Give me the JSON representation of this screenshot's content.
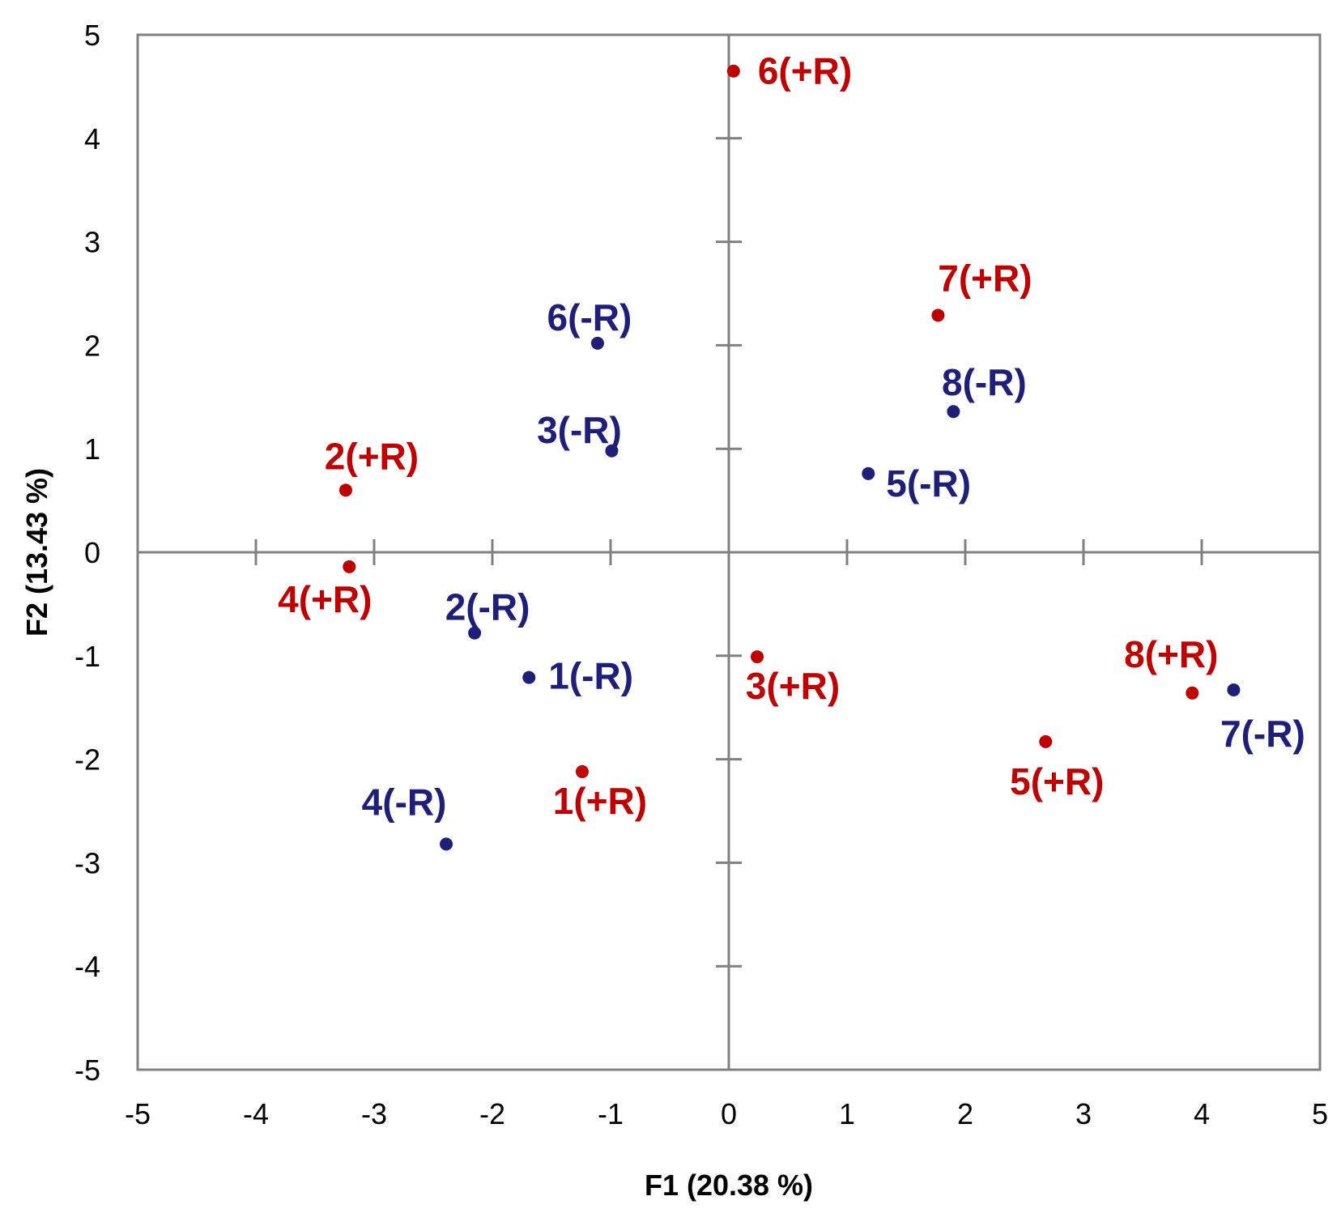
{
  "chart_data": {
    "type": "scatter",
    "title": "",
    "xlabel": "F1 (20.38 %)",
    "ylabel": "F2 (13.43 %)",
    "xlim": [
      -5,
      5
    ],
    "ylim": [
      -5,
      5
    ],
    "x_ticks": [
      "-5",
      "-4",
      "-3",
      "-2",
      "-1",
      "0",
      "1",
      "2",
      "3",
      "4",
      "5"
    ],
    "y_ticks": [
      "5",
      "4",
      "3",
      "2",
      "1",
      "0",
      "-1",
      "-2",
      "-3",
      "-4",
      "-5"
    ],
    "grid": false,
    "legend": "none",
    "colors": {
      "plus_r": "#c00000",
      "minus_r": "#1f1f7a",
      "axis": "#808080"
    },
    "series": [
      {
        "color": "#c00000",
        "points": [
          {
            "label": "1(+R)",
            "x": -1.24,
            "y": -2.12
          },
          {
            "label": "2(+R)",
            "x": -3.24,
            "y": 0.6
          },
          {
            "label": "3(+R)",
            "x": 0.24,
            "y": -1.01
          },
          {
            "label": "4(+R)",
            "x": -3.21,
            "y": -0.14
          },
          {
            "label": "5(+R)",
            "x": 2.68,
            "y": -1.83
          },
          {
            "label": "6(+R)",
            "x": 0.04,
            "y": 4.65
          },
          {
            "label": "7(+R)",
            "x": 1.77,
            "y": 2.29
          },
          {
            "label": "8(+R)",
            "x": 3.92,
            "y": -1.36
          }
        ]
      },
      {
        "color": "#1f1f7a",
        "points": [
          {
            "label": "1(-R)",
            "x": -1.69,
            "y": -1.21
          },
          {
            "label": "2(-R)",
            "x": -2.15,
            "y": -0.78
          },
          {
            "label": "3(-R)",
            "x": -0.99,
            "y": 0.98
          },
          {
            "label": "4(-R)",
            "x": -2.39,
            "y": -2.82
          },
          {
            "label": "5(-R)",
            "x": 1.18,
            "y": 0.76
          },
          {
            "label": "6(-R)",
            "x": -1.11,
            "y": 2.02
          },
          {
            "label": "7(-R)",
            "x": 4.27,
            "y": -1.33
          },
          {
            "label": "8(-R)",
            "x": 1.9,
            "y": 1.36
          }
        ]
      }
    ]
  }
}
